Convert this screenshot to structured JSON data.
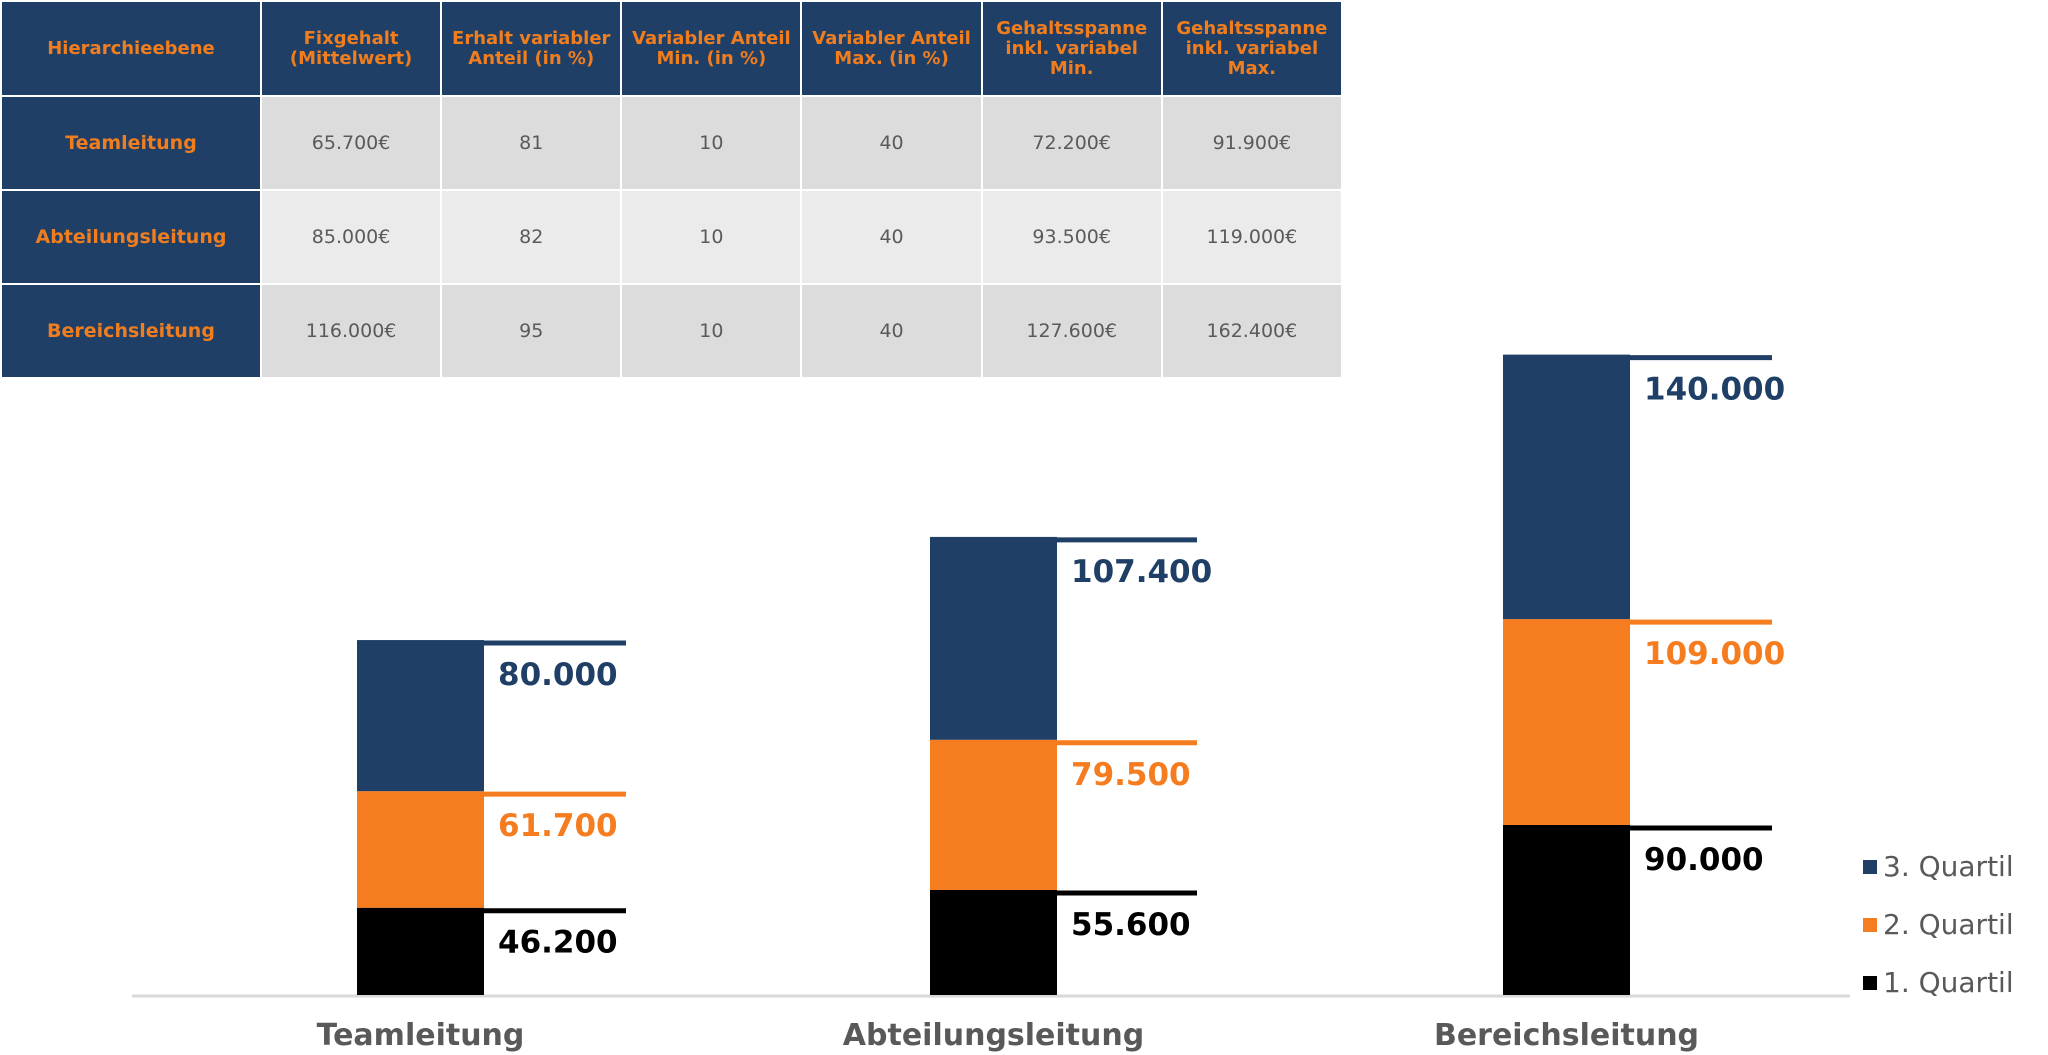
{
  "table": {
    "headers": [
      "Hierarchieebene",
      "Fixgehalt (Mittelwert)",
      "Erhalt variabler Anteil (in %)",
      "Variabler Anteil Min. (in %)",
      "Variabler Anteil Max. (in %)",
      "Gehaltsspanne inkl. variabel Min.",
      "Gehaltsspanne inkl. variabel Max."
    ],
    "rows": [
      [
        "Teamleitung",
        "65.700€",
        "81",
        "10",
        "40",
        "72.200€",
        "91.900€"
      ],
      [
        "Abteilungsleitung",
        "85.000€",
        "82",
        "10",
        "40",
        "93.500€",
        "119.000€"
      ],
      [
        "Bereichsleitung",
        "116.000€",
        "95",
        "10",
        "40",
        "127.600€",
        "162.400€"
      ]
    ]
  },
  "chart_data": {
    "type": "bar",
    "stacked": true,
    "categories": [
      "Teamleitung",
      "Abteilungsleitung",
      "Bereichsleitung"
    ],
    "series": [
      {
        "name": "1. Quartil",
        "values": [
          46200,
          55600,
          90000
        ],
        "labels": [
          "46.200",
          "55.600",
          "90.000"
        ],
        "color": "#000000"
      },
      {
        "name": "2. Quartil",
        "values": [
          61700,
          79500,
          109000
        ],
        "labels": [
          "61.700",
          "79.500",
          "109.000"
        ],
        "color": "#f57c1f"
      },
      {
        "name": "3. Quartil",
        "values": [
          80000,
          107400,
          140000
        ],
        "labels": [
          "80.000",
          "107.400",
          "140.000"
        ],
        "color": "#1f3f66"
      }
    ],
    "legend": {
      "position": "right",
      "order": [
        "3. Quartil",
        "2. Quartil",
        "1. Quartil"
      ]
    },
    "grid": false
  }
}
